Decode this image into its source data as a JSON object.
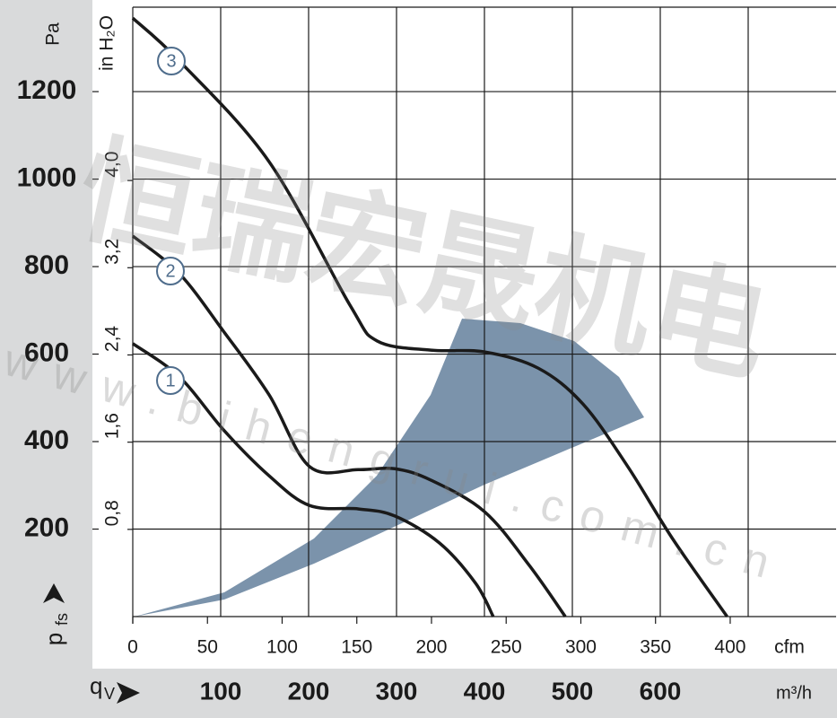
{
  "chart_data": {
    "type": "line",
    "y_label": {
      "symbol": "p",
      "subscript": "fs"
    },
    "y_unit": "Pa",
    "y2_unit": "in H₂O",
    "x_label": {
      "symbol": "q",
      "subscript": "V"
    },
    "x_unit": "m³/h",
    "x2_unit": "cfm",
    "xlim": [
      0,
      800
    ],
    "xticks": [
      100,
      200,
      300,
      400,
      500,
      600
    ],
    "xgrid": [
      100,
      200,
      300,
      400,
      500,
      600,
      700
    ],
    "x2lim": [
      0,
      470.9
    ],
    "x2ticks": [
      0,
      50,
      100,
      150,
      200,
      250,
      300,
      350,
      400
    ],
    "ylim": [
      0,
      1393
    ],
    "yticks": [
      200,
      400,
      600,
      800,
      1000,
      1200
    ],
    "y2lim": [
      0,
      5.59
    ],
    "y2ticks": [
      {
        "value": 0.8,
        "label": "0,8"
      },
      {
        "value": 1.6,
        "label": "1,6"
      },
      {
        "value": 2.4,
        "label": "2,4"
      },
      {
        "value": 3.2,
        "label": "3,2"
      },
      {
        "value": 4.0,
        "label": "4,0"
      }
    ],
    "grid": true,
    "series": [
      {
        "name": "1",
        "color": "#1a1a1a",
        "x": [
          0,
          53,
          104,
          155,
          201,
          257,
          298,
          349,
          390,
          410
        ],
        "values": [
          624,
          548,
          425,
          322,
          254,
          246,
          230,
          168,
          76,
          0
        ]
      },
      {
        "name": "2",
        "color": "#1a1a1a",
        "x": [
          0,
          53,
          104,
          155,
          201,
          257,
          298,
          339,
          400,
          451,
          492
        ],
        "values": [
          870,
          784,
          650,
          507,
          343,
          336,
          338,
          312,
          240,
          117,
          0
        ]
      },
      {
        "name": "3",
        "color": "#1a1a1a",
        "x": [
          0,
          53,
          155,
          247,
          278,
          339,
          400,
          461,
          512,
          563,
          614,
          676
        ],
        "values": [
          1368,
          1270,
          1040,
          712,
          630,
          609,
          605,
          568,
          486,
          343,
          178,
          0
        ]
      }
    ],
    "watermark": {
      "brand": "恒瑞宏晟机电",
      "url": "www.bihengrui.com.cn"
    }
  }
}
